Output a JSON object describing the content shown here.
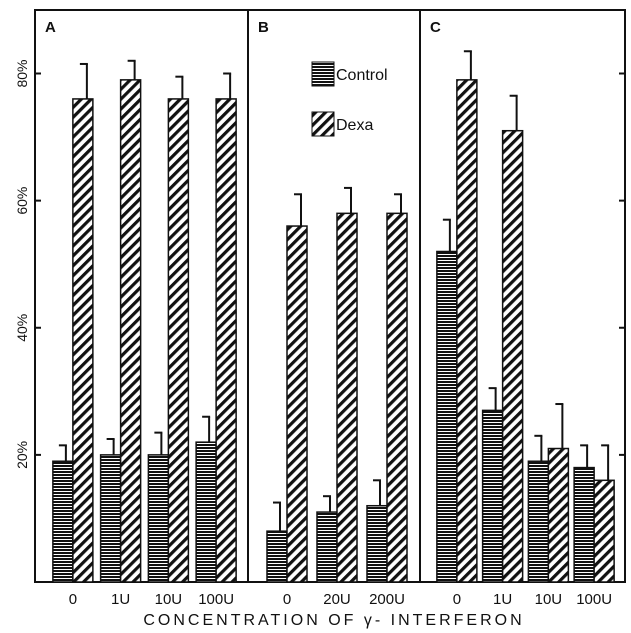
{
  "chart_data": {
    "type": "bar",
    "xlabel": "CONCENTRATION OF γ- INTERFERON",
    "ylabel": "",
    "ylim": [
      0,
      90
    ],
    "yticks": [
      {
        "value": 20,
        "label": "20%"
      },
      {
        "value": 40,
        "label": "40%"
      },
      {
        "value": 60,
        "label": "60%"
      },
      {
        "value": 80,
        "label": "80%"
      }
    ],
    "grid": false,
    "legend_placement": "top-right of panel B",
    "legend": [
      {
        "name": "Control",
        "pattern": "horizontal-lines"
      },
      {
        "name": "Dexa",
        "pattern": "diagonal-lines"
      }
    ],
    "panels": [
      {
        "label": "A",
        "categories": [
          "0",
          "1U",
          "10U",
          "100U"
        ],
        "series": [
          {
            "name": "Control",
            "values": [
              19,
              20,
              20,
              22
            ],
            "errors": [
              2.5,
              2.5,
              3.5,
              4
            ]
          },
          {
            "name": "Dexa",
            "values": [
              76,
              79,
              76,
              76
            ],
            "errors": [
              5.5,
              3,
              3.5,
              4
            ]
          }
        ]
      },
      {
        "label": "B",
        "categories": [
          "0",
          "20U",
          "200U"
        ],
        "series": [
          {
            "name": "Control",
            "values": [
              8,
              11,
              12
            ],
            "errors": [
              4.5,
              2.5,
              4
            ]
          },
          {
            "name": "Dexa",
            "values": [
              56,
              58,
              58
            ],
            "errors": [
              5,
              4,
              3
            ]
          }
        ]
      },
      {
        "label": "C",
        "categories": [
          "0",
          "1U",
          "10U",
          "100U"
        ],
        "series": [
          {
            "name": "Control",
            "values": [
              52,
              27,
              19,
              18
            ],
            "errors": [
              5,
              3.5,
              4,
              3.5
            ]
          },
          {
            "name": "Dexa",
            "values": [
              79,
              71,
              21,
              16
            ],
            "errors": [
              4.5,
              5.5,
              7,
              5.5
            ]
          }
        ]
      }
    ]
  }
}
